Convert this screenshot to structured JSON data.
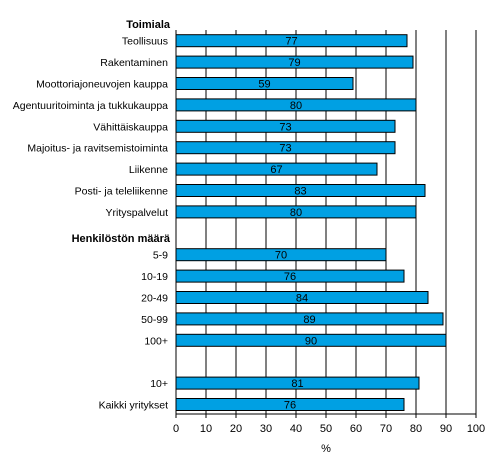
{
  "chart_data": {
    "type": "bar",
    "orientation": "horizontal",
    "xlabel": "%",
    "xlim": [
      0,
      100
    ],
    "xticks": [
      0,
      10,
      20,
      30,
      40,
      50,
      60,
      70,
      80,
      90,
      100
    ],
    "grid": "vertical",
    "legend": "none",
    "colors": {
      "bar_fill": "#00a0e3",
      "bar_stroke": "#000000",
      "grid": "#000000"
    },
    "groups": [
      {
        "heading": "Toimiala",
        "categories": [
          "Teollisuus",
          "Rakentaminen",
          "Moottoriajoneuvojen kauppa",
          "Agentuuritoiminta ja tukkukauppa",
          "Vähittäiskauppa",
          "Majoitus- ja ravitsemistoiminta",
          "Liikenne",
          "Posti- ja teleliikenne",
          "Yrityspalvelut"
        ],
        "values": [
          77,
          79,
          59,
          80,
          73,
          73,
          67,
          83,
          80
        ]
      },
      {
        "heading": "Henkilöstön määrä",
        "categories": [
          "5-9",
          "10-19",
          "20-49",
          "50-99",
          "100+"
        ],
        "values": [
          70,
          76,
          84,
          89,
          90
        ]
      },
      {
        "heading": "",
        "categories": [
          "10+",
          "Kaikki yritykset"
        ],
        "values": [
          81,
          76
        ]
      }
    ]
  }
}
